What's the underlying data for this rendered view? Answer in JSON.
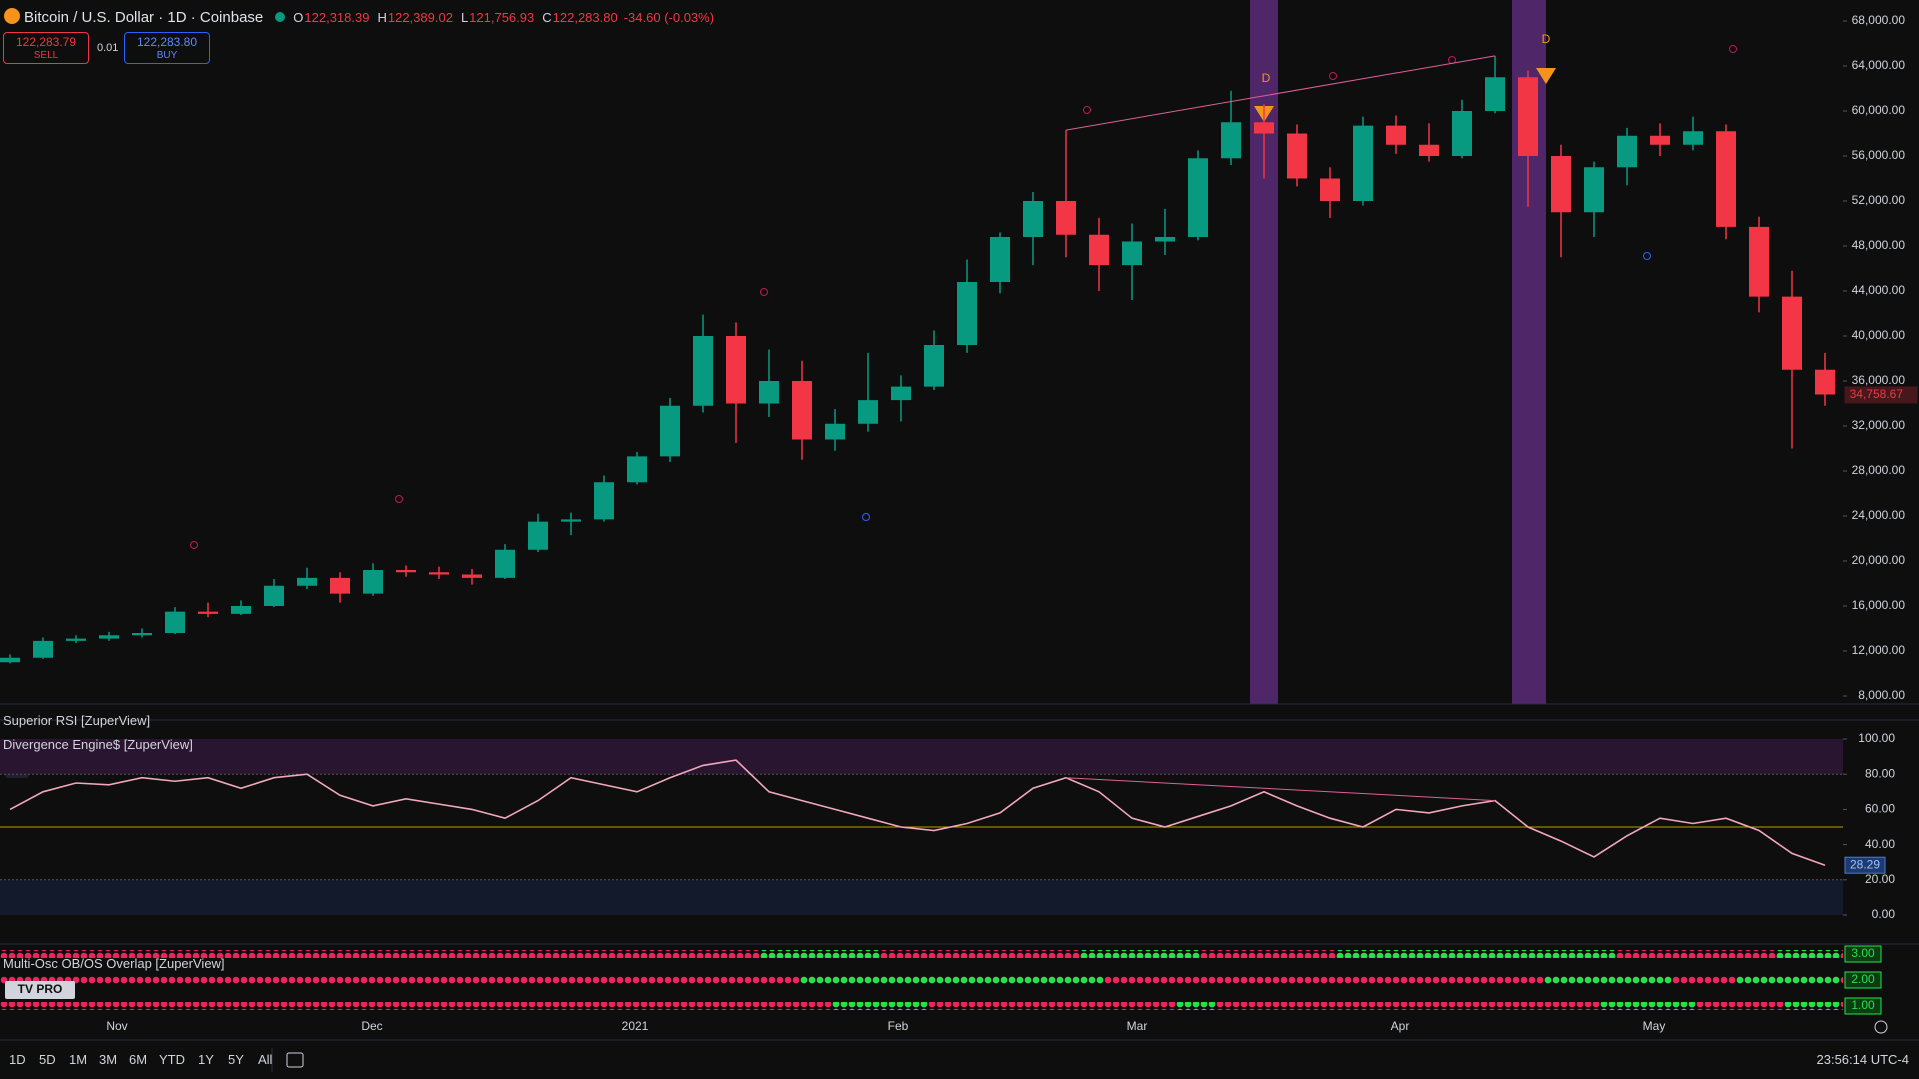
{
  "header": {
    "symbol": "Bitcoin / U.S. Dollar · 1D · Coinbase",
    "o_key": "O",
    "o": "122,318.39",
    "h_key": "H",
    "h": "122,389.02",
    "l_key": "L",
    "l": "121,756.93",
    "c_key": "C",
    "c": "122,283.80",
    "change": "-34.60 (-0.03%)"
  },
  "trade": {
    "sell_price": "122,283.79",
    "sell": "SELL",
    "qty": "0.01",
    "buy_price": "122,283.80",
    "buy": "BUY"
  },
  "indicators": {
    "rsi": "Superior RSI [ZuperView]",
    "divergence": "Divergence Engine$ [ZuperView]",
    "multi_osc": "Multi-Osc OB/OS Overlap [ZuperView]"
  },
  "signal_labels": [
    "D",
    "D"
  ],
  "toolbar": {
    "ranges": [
      "1D",
      "5D",
      "1M",
      "3M",
      "6M",
      "YTD",
      "1Y",
      "5Y",
      "All"
    ],
    "clock": "23:56:14 UTC-4"
  },
  "chart_data": {
    "type": "candlestick",
    "time_labels": [
      "Nov",
      "Dec",
      "2021",
      "Feb",
      "Mar",
      "Apr",
      "May"
    ],
    "up_color": "#089981",
    "down_color": "#f23645",
    "open": [
      11000,
      11400,
      12900,
      13100,
      13400,
      13600,
      15500,
      15300,
      16000,
      17800,
      18500,
      17100,
      19200,
      19000,
      18800,
      18500,
      21000,
      23500,
      23700,
      27000,
      29300,
      33800,
      40000,
      34000,
      36000,
      30800,
      32200,
      34300,
      35500,
      39200,
      44800,
      48800,
      52000,
      49000,
      46300,
      48400,
      48800,
      55800,
      59000,
      58000,
      54000,
      52000,
      58700,
      57000,
      56000,
      60000,
      63000,
      56000,
      51000,
      55000,
      57800,
      57000,
      58200,
      49700,
      43500,
      37000
    ],
    "high": [
      11700,
      13200,
      13400,
      13700,
      14000,
      15900,
      16300,
      16500,
      18400,
      19400,
      19000,
      19800,
      19600,
      19500,
      19300,
      21500,
      24200,
      24300,
      27600,
      29700,
      34500,
      41900,
      41200,
      38800,
      37800,
      33500,
      38500,
      36500,
      40500,
      46800,
      49200,
      52800,
      58300,
      50500,
      50000,
      51300,
      56500,
      61800,
      60600,
      58800,
      55000,
      59500,
      59600,
      58900,
      61000,
      64900,
      63600,
      57000,
      55500,
      58500,
      58900,
      59500,
      58800,
      50600,
      45800,
      38500
    ],
    "low": [
      10900,
      11300,
      12700,
      12900,
      13200,
      13500,
      15000,
      15200,
      15900,
      17500,
      16300,
      16900,
      18600,
      18400,
      17900,
      18400,
      20800,
      22300,
      23500,
      26800,
      28800,
      33200,
      30500,
      32800,
      29000,
      29800,
      31500,
      32400,
      35200,
      38500,
      43800,
      46300,
      47000,
      44000,
      43200,
      47200,
      48500,
      55200,
      54000,
      53300,
      50500,
      51600,
      56200,
      55500,
      55800,
      59800,
      51500,
      47000,
      48800,
      53400,
      56000,
      56500,
      48600,
      42100,
      30000,
      33800
    ],
    "close": [
      11400,
      12900,
      13100,
      13400,
      13600,
      15500,
      15300,
      16000,
      17800,
      18500,
      17100,
      19200,
      19000,
      18800,
      18500,
      21000,
      23500,
      23700,
      27000,
      29300,
      33800,
      40000,
      34000,
      36000,
      30800,
      32200,
      34300,
      35500,
      39200,
      44800,
      48800,
      52000,
      49000,
      46300,
      48400,
      48800,
      55800,
      59000,
      58000,
      54000,
      52000,
      58700,
      57000,
      56000,
      60000,
      63000,
      56000,
      51000,
      55000,
      57800,
      57000,
      58200,
      49700,
      43500,
      37000,
      34800
    ],
    "ylim": [
      8000,
      68000
    ],
    "yticks": [
      {
        "value": 8000,
        "label": "8,000.00"
      },
      {
        "value": 12000,
        "label": "12,000.00"
      },
      {
        "value": 16000,
        "label": "16,000.00"
      },
      {
        "value": 20000,
        "label": "20,000.00"
      },
      {
        "value": 24000,
        "label": "24,000.00"
      },
      {
        "value": 28000,
        "label": "28,000.00"
      },
      {
        "value": 32000,
        "label": "32,000.00"
      },
      {
        "value": 36000,
        "label": "36,000.00"
      },
      {
        "value": 40000,
        "label": "40,000.00"
      },
      {
        "value": 44000,
        "label": "44,000.00"
      },
      {
        "value": 48000,
        "label": "48,000.00"
      },
      {
        "value": 52000,
        "label": "52,000.00"
      },
      {
        "value": 56000,
        "label": "56,000.00"
      },
      {
        "value": 60000,
        "label": "60,000.00"
      },
      {
        "value": 64000,
        "label": "64,000.00"
      },
      {
        "value": 68000,
        "label": "68,000.00"
      }
    ],
    "last_price": {
      "value": 34758.67,
      "label": "34,758.67"
    },
    "divergence_line": [
      58300,
      64900
    ],
    "rsi": {
      "values": [
        60,
        70,
        75,
        74,
        78,
        76,
        78,
        72,
        78,
        80,
        68,
        62,
        66,
        63,
        60,
        55,
        65,
        78,
        74,
        70,
        78,
        85,
        88,
        70,
        65,
        60,
        55,
        50,
        48,
        52,
        58,
        72,
        78,
        70,
        55,
        50,
        56,
        62,
        70,
        62,
        55,
        50,
        60,
        58,
        62,
        65,
        50,
        42,
        33,
        45,
        55,
        52,
        55,
        48,
        35,
        28.29
      ],
      "color": "#f2a7bd",
      "last_label": "28.29",
      "ob_level": 80,
      "os_level": 20,
      "mid_level": 50,
      "divergence_line": [
        78,
        65
      ],
      "ylim": [
        0,
        100
      ],
      "yticks": [
        {
          "value": 100,
          "label": "100.00"
        },
        {
          "value": 80,
          "label": "80.00"
        },
        {
          "value": 60,
          "label": "60.00"
        },
        {
          "value": 40,
          "label": "40.00"
        },
        {
          "value": 20,
          "label": "20.00"
        },
        {
          "value": 0,
          "label": "0.00"
        }
      ]
    },
    "osc_rows": [
      {
        "value": 3,
        "label": "3.00"
      },
      {
        "value": 2,
        "label": "2.00"
      },
      {
        "value": 1,
        "label": "1.00"
      }
    ]
  }
}
